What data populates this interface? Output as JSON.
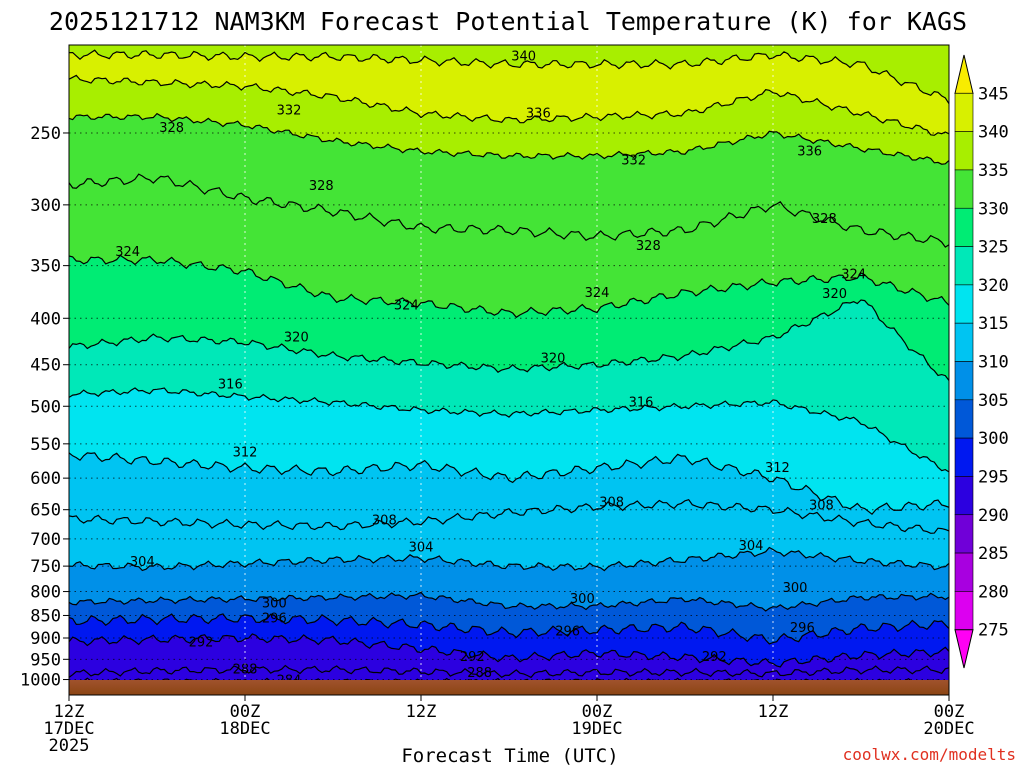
{
  "chart_data": {
    "type": "heatmap",
    "title": "2025121712 NAM3KM Forecast Potential Temperature (K) for KAGS",
    "xlabel": "Forecast Time (UTC)",
    "ylabel": "",
    "credit": "coolwx.com/modelts",
    "y_axis": {
      "units": "hPa",
      "scale": "log",
      "range": [
        1040,
        200
      ],
      "ticks": [
        250,
        300,
        350,
        400,
        450,
        500,
        550,
        600,
        650,
        700,
        750,
        800,
        850,
        900,
        950,
        1000
      ]
    },
    "x_axis": {
      "range_hours": [
        0,
        60
      ],
      "ticks": [
        {
          "hour": 0,
          "label": "12Z",
          "sub1": "17DEC",
          "sub2": "2025"
        },
        {
          "hour": 12,
          "label": "00Z",
          "sub1": "18DEC",
          "sub2": ""
        },
        {
          "hour": 24,
          "label": "12Z",
          "sub1": "",
          "sub2": ""
        },
        {
          "hour": 36,
          "label": "00Z",
          "sub1": "19DEC",
          "sub2": ""
        },
        {
          "hour": 48,
          "label": "12Z",
          "sub1": "",
          "sub2": ""
        },
        {
          "hour": 60,
          "label": "00Z",
          "sub1": "20DEC",
          "sub2": ""
        }
      ]
    },
    "colorbar": {
      "labels": [
        345,
        340,
        335,
        330,
        325,
        320,
        315,
        310,
        305,
        300,
        295,
        290,
        285,
        280,
        275
      ],
      "colors": [
        "#f8ec00",
        "#d8f000",
        "#a8ee00",
        "#44e436",
        "#00ec74",
        "#00e8b8",
        "#00e4f0",
        "#00c4f2",
        "#0090e8",
        "#0058d8",
        "#0018f0",
        "#2c00e0",
        "#7000d8",
        "#a800e0",
        "#dc00f0",
        "#ff00f4"
      ]
    },
    "contour_interval": 4,
    "series": [
      {
        "name": "284 K",
        "contour_level": 284,
        "pressure_hpa": [
          1005,
          1005,
          1006,
          1006,
          1006,
          1006,
          1005,
          1006,
          1006,
          1006,
          1006
        ]
      },
      {
        "name": "288 K",
        "contour_level": 288,
        "pressure_hpa": [
          985,
          978,
          975,
          975,
          980,
          986,
          982,
          982,
          985,
          976,
          976
        ]
      },
      {
        "name": "292 K",
        "contour_level": 292,
        "pressure_hpa": [
          908,
          903,
          900,
          905,
          925,
          948,
          935,
          945,
          960,
          940,
          932
        ]
      },
      {
        "name": "296 K",
        "contour_level": 296,
        "pressure_hpa": [
          862,
          858,
          856,
          860,
          870,
          888,
          882,
          875,
          905,
          878,
          868
        ]
      },
      {
        "name": "300 K",
        "contour_level": 300,
        "pressure_hpa": [
          822,
          818,
          815,
          812,
          808,
          830,
          830,
          815,
          835,
          812,
          810
        ]
      },
      {
        "name": "304 K",
        "contour_level": 304,
        "pressure_hpa": [
          748,
          752,
          745,
          738,
          735,
          750,
          752,
          738,
          722,
          740,
          752
        ]
      },
      {
        "name": "308 K",
        "contour_level": 308,
        "pressure_hpa": [
          665,
          670,
          675,
          678,
          670,
          655,
          645,
          640,
          650,
          672,
          688
        ]
      },
      {
        "name": "312 K",
        "contour_level": 312,
        "pressure_hpa": [
          565,
          575,
          585,
          590,
          580,
          600,
          585,
          570,
          600,
          650,
          640
        ]
      },
      {
        "name": "316 K",
        "contour_level": 316,
        "pressure_hpa": [
          485,
          480,
          488,
          495,
          505,
          510,
          505,
          500,
          495,
          520,
          590
        ]
      },
      {
        "name": "320 K",
        "contour_level": 320,
        "pressure_hpa": [
          430,
          420,
          425,
          440,
          448,
          455,
          450,
          440,
          420,
          380,
          470
        ]
      },
      {
        "name": "324 K",
        "contour_level": 324,
        "pressure_hpa": [
          345,
          345,
          355,
          380,
          385,
          395,
          390,
          375,
          365,
          360,
          385
        ]
      },
      {
        "name": "328 K",
        "contour_level": 328,
        "pressure_hpa": [
          285,
          280,
          295,
          305,
          318,
          320,
          325,
          320,
          300,
          320,
          330
        ]
      },
      {
        "name": "332 K",
        "contour_level": 332,
        "pressure_hpa": [
          240,
          240,
          245,
          255,
          262,
          265,
          265,
          262,
          250,
          260,
          270
        ]
      },
      {
        "name": "336 K",
        "contour_level": 336,
        "pressure_hpa": [
          218,
          220,
          222,
          228,
          238,
          242,
          240,
          238,
          225,
          238,
          252
        ]
      },
      {
        "name": "340 K",
        "contour_level": 340,
        "pressure_hpa": [
          205,
          205,
          206,
          206,
          208,
          210,
          210,
          210,
          205,
          210,
          230
        ]
      }
    ],
    "series_x_hours": [
      0,
      6,
      12,
      18,
      24,
      30,
      36,
      42,
      48,
      54,
      60
    ],
    "contour_labels": [
      {
        "text": "340",
        "hour": 31,
        "pressure_hpa": 206
      },
      {
        "text": "336",
        "hour": 32,
        "pressure_hpa": 238
      },
      {
        "text": "336",
        "hour": 50.5,
        "pressure_hpa": 262
      },
      {
        "text": "332",
        "hour": 15,
        "pressure_hpa": 236
      },
      {
        "text": "332",
        "hour": 38.5,
        "pressure_hpa": 268
      },
      {
        "text": "328",
        "hour": 7,
        "pressure_hpa": 247
      },
      {
        "text": "328",
        "hour": 17.2,
        "pressure_hpa": 286
      },
      {
        "text": "328",
        "hour": 39.5,
        "pressure_hpa": 333
      },
      {
        "text": "328",
        "hour": 51.5,
        "pressure_hpa": 311
      },
      {
        "text": "324",
        "hour": 4,
        "pressure_hpa": 338
      },
      {
        "text": "324",
        "hour": 23,
        "pressure_hpa": 387
      },
      {
        "text": "324",
        "hour": 36,
        "pressure_hpa": 375
      },
      {
        "text": "324",
        "hour": 53.5,
        "pressure_hpa": 358
      },
      {
        "text": "320",
        "hour": 15.5,
        "pressure_hpa": 420
      },
      {
        "text": "320",
        "hour": 33,
        "pressure_hpa": 443
      },
      {
        "text": "320",
        "hour": 52.2,
        "pressure_hpa": 376
      },
      {
        "text": "316",
        "hour": 11,
        "pressure_hpa": 473
      },
      {
        "text": "316",
        "hour": 39,
        "pressure_hpa": 495
      },
      {
        "text": "312",
        "hour": 12,
        "pressure_hpa": 562
      },
      {
        "text": "312",
        "hour": 48.3,
        "pressure_hpa": 585
      },
      {
        "text": "308",
        "hour": 21.5,
        "pressure_hpa": 668
      },
      {
        "text": "308",
        "hour": 37,
        "pressure_hpa": 638
      },
      {
        "text": "308",
        "hour": 51.3,
        "pressure_hpa": 643
      },
      {
        "text": "304",
        "hour": 5,
        "pressure_hpa": 742
      },
      {
        "text": "304",
        "hour": 24,
        "pressure_hpa": 715
      },
      {
        "text": "304",
        "hour": 46.5,
        "pressure_hpa": 713
      },
      {
        "text": "300",
        "hour": 14,
        "pressure_hpa": 825
      },
      {
        "text": "300",
        "hour": 35,
        "pressure_hpa": 815
      },
      {
        "text": "300",
        "hour": 49.5,
        "pressure_hpa": 793
      },
      {
        "text": "296",
        "hour": 14,
        "pressure_hpa": 857
      },
      {
        "text": "296",
        "hour": 34,
        "pressure_hpa": 885
      },
      {
        "text": "296",
        "hour": 50,
        "pressure_hpa": 877
      },
      {
        "text": "292",
        "hour": 9,
        "pressure_hpa": 910
      },
      {
        "text": "292",
        "hour": 27.5,
        "pressure_hpa": 945
      },
      {
        "text": "292",
        "hour": 44,
        "pressure_hpa": 945
      },
      {
        "text": "288",
        "hour": 12,
        "pressure_hpa": 975
      },
      {
        "text": "288",
        "hour": 28,
        "pressure_hpa": 983
      },
      {
        "text": "284",
        "hour": 15,
        "pressure_hpa": 1003
      }
    ]
  }
}
